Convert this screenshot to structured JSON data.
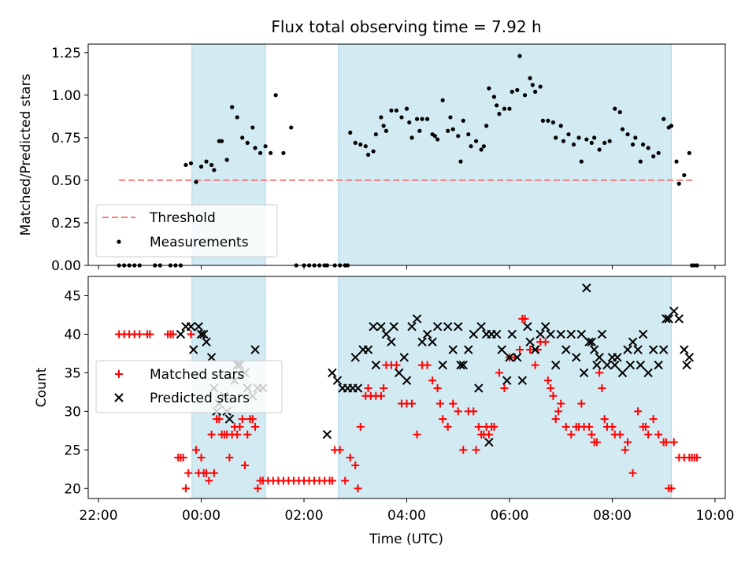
{
  "figure": {
    "title": "Flux total observing time = 7.92 h",
    "xlabel": "Time (UTC)",
    "xticks": [
      {
        "h": -2,
        "label": "22:00"
      },
      {
        "h": 0,
        "label": "00:00"
      },
      {
        "h": 2,
        "label": "02:00"
      },
      {
        "h": 4,
        "label": "04:00"
      },
      {
        "h": 6,
        "label": "06:00"
      },
      {
        "h": 8,
        "label": "08:00"
      },
      {
        "h": 10,
        "label": "10:00"
      }
    ]
  },
  "chart_data": [
    {
      "type": "scatter",
      "ylabel": "Matched/Predicted stars",
      "xlim_hours": [
        -2.2,
        10.2
      ],
      "ylim": [
        0,
        1.3
      ],
      "yticks": [
        {
          "v": 0,
          "label": "0.00"
        },
        {
          "v": 0.25,
          "label": "0.25"
        },
        {
          "v": 0.5,
          "label": "0.50"
        },
        {
          "v": 0.75,
          "label": "0.75"
        },
        {
          "v": 1.0,
          "label": "1.00"
        },
        {
          "v": 1.25,
          "label": "1.25"
        }
      ],
      "shaded_intervals_hours": [
        [
          -0.18,
          1.25
        ],
        [
          2.67,
          9.15
        ]
      ],
      "shade_color": "#add8e6",
      "threshold": {
        "name": "Threshold",
        "y": 0.5,
        "x_range_hours": [
          -1.6,
          9.6
        ],
        "color": "#f08080"
      },
      "measurements": {
        "name": "Measurements",
        "color": "#000000",
        "x_hours": [
          -1.6,
          -1.5,
          -1.4,
          -1.3,
          -1.2,
          -0.9,
          -0.8,
          -0.6,
          -0.5,
          -0.4,
          -0.3,
          -0.2,
          -0.1,
          0.0,
          0.1,
          0.2,
          0.25,
          0.35,
          0.4,
          0.5,
          0.6,
          0.7,
          0.8,
          0.9,
          1.0,
          1.05,
          1.15,
          1.25,
          1.35,
          1.45,
          1.6,
          1.75,
          1.85,
          2.0,
          2.1,
          2.2,
          2.3,
          2.4,
          2.45,
          2.6,
          2.7,
          2.8,
          2.85,
          2.9,
          3.0,
          3.1,
          3.2,
          3.25,
          3.35,
          3.4,
          3.5,
          3.55,
          3.6,
          3.7,
          3.8,
          3.9,
          4.0,
          4.05,
          4.1,
          4.2,
          4.25,
          4.3,
          4.4,
          4.5,
          4.55,
          4.6,
          4.7,
          4.8,
          4.85,
          4.9,
          5.0,
          5.05,
          5.1,
          5.2,
          5.25,
          5.35,
          5.45,
          5.5,
          5.55,
          5.6,
          5.7,
          5.75,
          5.8,
          5.9,
          6.0,
          6.05,
          6.15,
          6.2,
          6.3,
          6.4,
          6.45,
          6.5,
          6.6,
          6.65,
          6.75,
          6.85,
          6.9,
          7.0,
          7.05,
          7.15,
          7.25,
          7.35,
          7.4,
          7.5,
          7.6,
          7.65,
          7.75,
          7.85,
          7.95,
          8.05,
          8.15,
          8.2,
          8.3,
          8.4,
          8.45,
          8.55,
          8.6,
          8.7,
          8.8,
          8.9,
          9.0,
          9.1,
          9.15,
          9.25,
          9.3,
          9.4,
          9.5,
          9.55,
          9.6,
          9.65
        ],
        "y": [
          0,
          0,
          0,
          0,
          0,
          0,
          0,
          0,
          0,
          0,
          0.59,
          0.6,
          0.49,
          0.58,
          0.61,
          0.59,
          0.56,
          0.73,
          0.73,
          0.62,
          0.93,
          0.87,
          0.75,
          0.72,
          0.81,
          0.69,
          0.66,
          0.7,
          0.66,
          1.0,
          0.66,
          0.81,
          0,
          0,
          0,
          0,
          0,
          0,
          0,
          0,
          0,
          0,
          0,
          0.78,
          0.72,
          0.71,
          0.7,
          0.65,
          0.67,
          0.77,
          0.87,
          0.82,
          0.79,
          0.91,
          0.91,
          0.87,
          0.92,
          0.84,
          0.75,
          0.86,
          0.79,
          0.86,
          0.86,
          0.77,
          0.76,
          0.74,
          0.97,
          0.79,
          0.87,
          0.8,
          0.76,
          0.61,
          0.85,
          0.77,
          0.7,
          0.73,
          0.68,
          0.7,
          0.82,
          1.04,
          0.99,
          0.94,
          0.89,
          0.92,
          0.92,
          1.02,
          1.03,
          1.23,
          1.0,
          1.1,
          1.06,
          1.02,
          1.05,
          0.85,
          0.85,
          0.84,
          0.75,
          0.82,
          0.73,
          0.77,
          0.71,
          0.75,
          0.61,
          0.74,
          0.72,
          0.75,
          0.68,
          0.72,
          0.73,
          0.92,
          0.9,
          0.8,
          0.77,
          0.71,
          0.75,
          0.61,
          0.71,
          0.69,
          0.64,
          0.66,
          0.86,
          0.81,
          0.82,
          0.61,
          0.48,
          0.53,
          0.66,
          0,
          0,
          0
        ]
      },
      "legend": {
        "position": "lower left",
        "entries": [
          "Threshold",
          "Measurements"
        ]
      }
    },
    {
      "type": "scatter",
      "ylabel": "Count",
      "xlim_hours": [
        -2.2,
        10.2
      ],
      "ylim": [
        18.7,
        47.5
      ],
      "yticks": [
        {
          "v": 20,
          "label": "20"
        },
        {
          "v": 25,
          "label": "25"
        },
        {
          "v": 30,
          "label": "30"
        },
        {
          "v": 35,
          "label": "35"
        },
        {
          "v": 40,
          "label": "40"
        },
        {
          "v": 45,
          "label": "45"
        }
      ],
      "shaded_intervals_hours": [
        [
          -0.18,
          1.25
        ],
        [
          2.67,
          9.15
        ]
      ],
      "shade_color": "#add8e6",
      "series": [
        {
          "name": "Matched stars",
          "marker": "+",
          "color": "#ff0000",
          "x_hours": [
            -1.6,
            -1.5,
            -1.4,
            -1.3,
            -1.2,
            -1.05,
            -1.0,
            -0.65,
            -0.6,
            -0.55,
            -0.45,
            -0.4,
            -0.35,
            -0.3,
            -0.25,
            -0.2,
            -0.1,
            -0.05,
            0.0,
            0.05,
            0.1,
            0.15,
            0.2,
            0.25,
            0.3,
            0.35,
            0.4,
            0.45,
            0.5,
            0.55,
            0.6,
            0.65,
            0.7,
            0.75,
            0.8,
            0.85,
            0.9,
            0.95,
            1.0,
            1.05,
            1.1,
            1.15,
            1.2,
            1.3,
            1.4,
            1.5,
            1.6,
            1.7,
            1.8,
            1.9,
            2.0,
            2.1,
            2.2,
            2.3,
            2.4,
            2.5,
            2.55,
            2.6,
            2.7,
            2.8,
            2.9,
            3.0,
            3.05,
            3.1,
            3.2,
            3.25,
            3.3,
            3.4,
            3.5,
            3.55,
            3.6,
            3.7,
            3.8,
            3.9,
            4.0,
            4.1,
            4.2,
            4.3,
            4.4,
            4.5,
            4.6,
            4.65,
            4.7,
            4.8,
            4.9,
            5.0,
            5.1,
            5.2,
            5.3,
            5.35,
            5.4,
            5.45,
            5.5,
            5.55,
            5.6,
            5.65,
            5.7,
            5.8,
            5.9,
            6.0,
            6.1,
            6.2,
            6.25,
            6.3,
            6.4,
            6.5,
            6.55,
            6.6,
            6.7,
            6.75,
            6.8,
            6.85,
            6.9,
            6.95,
            7.0,
            7.1,
            7.2,
            7.3,
            7.35,
            7.4,
            7.45,
            7.55,
            7.6,
            7.65,
            7.7,
            7.75,
            7.8,
            7.85,
            7.9,
            8.0,
            8.05,
            8.15,
            8.25,
            8.3,
            8.4,
            8.5,
            8.6,
            8.65,
            8.7,
            8.8,
            8.9,
            9.0,
            9.05,
            9.1,
            9.15,
            9.2,
            9.3,
            9.4,
            9.5,
            9.55,
            9.6,
            9.65
          ],
          "y": [
            40,
            40,
            40,
            40,
            40,
            40,
            40,
            40,
            40,
            40,
            24,
            24,
            24,
            20,
            22,
            40,
            25,
            22,
            24,
            22,
            22,
            21,
            27,
            22,
            29,
            29,
            27,
            27,
            27,
            24,
            27,
            28,
            27,
            28,
            29,
            23,
            27,
            29,
            29,
            28,
            20,
            21,
            21,
            21,
            21,
            21,
            21,
            21,
            21,
            21,
            21,
            21,
            21,
            21,
            21,
            21,
            21,
            25,
            25,
            21,
            24,
            23,
            20,
            28,
            32,
            33,
            32,
            32,
            32,
            33,
            36,
            36,
            36,
            31,
            31,
            31,
            27,
            36,
            36,
            34,
            33,
            31,
            29,
            28,
            31,
            30,
            25,
            30,
            30,
            25,
            28,
            27,
            27,
            28,
            27,
            28,
            28,
            35,
            33,
            37,
            37,
            38,
            42,
            42,
            38,
            36,
            38,
            39,
            39,
            34,
            33,
            32,
            29,
            30,
            31,
            28,
            27,
            28,
            28,
            31,
            28,
            28,
            27,
            26,
            26,
            35,
            33,
            29,
            28,
            28,
            27,
            27,
            25,
            26,
            22,
            30,
            28,
            28,
            27,
            29,
            27,
            26,
            26,
            20,
            20,
            26,
            24,
            24,
            24,
            24,
            24,
            24
          ]
        },
        {
          "name": "Predicted stars",
          "marker": "x",
          "color": "#000000",
          "x_hours": [
            -0.4,
            -0.3,
            -0.2,
            -0.15,
            -0.05,
            0.0,
            0.05,
            0.1,
            0.2,
            0.25,
            0.3,
            0.35,
            0.45,
            0.5,
            0.55,
            0.65,
            0.7,
            0.75,
            0.85,
            0.9,
            1.0,
            1.05,
            1.1,
            1.2,
            2.45,
            2.55,
            2.65,
            2.75,
            2.85,
            2.95,
            3.0,
            3.05,
            3.15,
            3.25,
            3.35,
            3.4,
            3.5,
            3.6,
            3.7,
            3.75,
            3.85,
            3.95,
            4.0,
            4.1,
            4.2,
            4.3,
            4.4,
            4.5,
            4.6,
            4.7,
            4.8,
            4.9,
            5.0,
            5.05,
            5.1,
            5.2,
            5.3,
            5.4,
            5.45,
            5.55,
            5.6,
            5.65,
            5.75,
            5.85,
            5.95,
            6.0,
            6.05,
            6.15,
            6.25,
            6.35,
            6.4,
            6.5,
            6.6,
            6.7,
            6.8,
            6.9,
            7.0,
            7.1,
            7.2,
            7.3,
            7.4,
            7.45,
            7.5,
            7.55,
            7.6,
            7.65,
            7.7,
            7.75,
            7.8,
            7.9,
            8.0,
            8.05,
            8.1,
            8.2,
            8.3,
            8.35,
            8.4,
            8.5,
            8.55,
            8.6,
            8.7,
            8.8,
            8.9,
            9.0,
            9.05,
            9.1,
            9.2,
            9.3,
            9.4,
            9.45,
            9.5
          ],
          "y": [
            40,
            41,
            41,
            38,
            41,
            40,
            40,
            39,
            37,
            33,
            30,
            31,
            32,
            30,
            29,
            34,
            36,
            36,
            35,
            33,
            32,
            38,
            33,
            33,
            27,
            35,
            34,
            33,
            33,
            33,
            37,
            33,
            38,
            38,
            41,
            36,
            41,
            40,
            39,
            41,
            35,
            37,
            34,
            41,
            42,
            39,
            40,
            39,
            41,
            36,
            41,
            38,
            41,
            36,
            36,
            38,
            40,
            33,
            41,
            40,
            26,
            40,
            40,
            38,
            34,
            37,
            40,
            37,
            34,
            41,
            39,
            38,
            40,
            41,
            40,
            36,
            40,
            38,
            40,
            37,
            40,
            35,
            46,
            39,
            39,
            38,
            36,
            37,
            40,
            36,
            37,
            36,
            37,
            35,
            38,
            36,
            39,
            38,
            36,
            40,
            35,
            38,
            36,
            38,
            42,
            42,
            43,
            42,
            38,
            36,
            37
          ]
        }
      ],
      "legend": {
        "position": "center left",
        "entries": [
          "Matched stars",
          "Predicted stars"
        ]
      }
    }
  ]
}
